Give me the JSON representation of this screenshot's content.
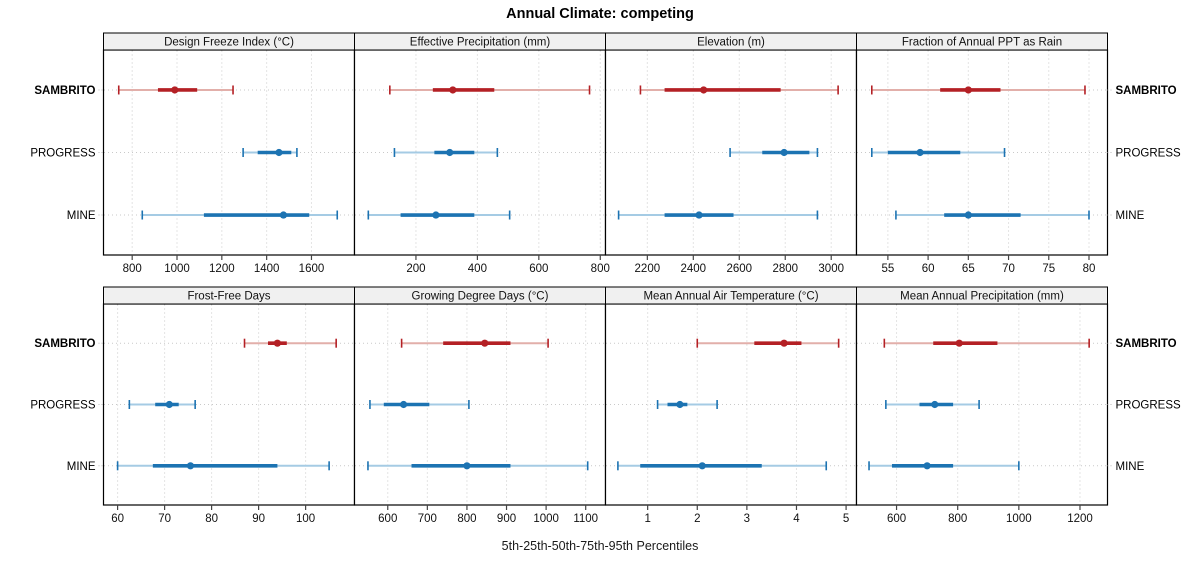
{
  "title": "Annual Climate: competing",
  "caption": "5th-25th-50th-75th-95th Percentiles",
  "colors": {
    "red_dark": "#B42025",
    "red_light": "#E2AFAA",
    "blue_dark": "#1C73B2",
    "blue_light": "#A5CBE4",
    "grid": "#c9c9c9",
    "strip_bg": "#f0f0f0",
    "panel_border": "#000000",
    "tick": "#444444",
    "text": "#111111"
  },
  "chart_data": {
    "type": "scatter",
    "subtype": "percentile-interval-dotplot",
    "layout": "4 columns x 2 rows, shared station rows",
    "grid": true,
    "percentile_labels": [
      "5th",
      "25th",
      "50th",
      "75th",
      "95th"
    ],
    "stations": [
      {
        "name": "SAMBRITO",
        "bold": true,
        "dark": "#B42025",
        "light": "#E2AFAA"
      },
      {
        "name": "PROGRESS",
        "bold": false,
        "dark": "#1C73B2",
        "light": "#A5CBE4"
      },
      {
        "name": "MINE",
        "bold": false,
        "dark": "#1C73B2",
        "light": "#A5CBE4"
      }
    ],
    "panels": [
      {
        "title": "Design Freeze Index (°C)",
        "ticks": [
          800,
          1000,
          1200,
          1400,
          1600
        ],
        "xlim": [
          672,
          1792
        ],
        "series": [
          {
            "name": "SAMBRITO",
            "values": [
              740,
              915,
              990,
              1090,
              1250
            ]
          },
          {
            "name": "PROGRESS",
            "values": [
              1295,
              1360,
              1455,
              1510,
              1535
            ]
          },
          {
            "name": "MINE",
            "values": [
              845,
              1120,
              1475,
              1590,
              1715
            ]
          }
        ]
      },
      {
        "title": "Effective Precipitation (mm)",
        "ticks": [
          200,
          400,
          600,
          800
        ],
        "xlim": [
          0,
          817
        ],
        "series": [
          {
            "name": "SAMBRITO",
            "values": [
              115,
              255,
              320,
              455,
              765
            ]
          },
          {
            "name": "PROGRESS",
            "values": [
              130,
              260,
              310,
              390,
              465
            ]
          },
          {
            "name": "MINE",
            "values": [
              45,
              150,
              265,
              390,
              505
            ]
          }
        ]
      },
      {
        "title": "Elevation (m)",
        "ticks": [
          2200,
          2400,
          2600,
          2800,
          3000
        ],
        "xlim": [
          2018,
          3110
        ],
        "series": [
          {
            "name": "SAMBRITO",
            "values": [
              2170,
              2275,
              2445,
              2780,
              3030
            ]
          },
          {
            "name": "PROGRESS",
            "values": [
              2560,
              2700,
              2795,
              2905,
              2940
            ]
          },
          {
            "name": "MINE",
            "values": [
              2075,
              2275,
              2425,
              2575,
              2940
            ]
          }
        ]
      },
      {
        "title": "Fraction of Annual PPT as Rain",
        "ticks": [
          55,
          60,
          65,
          70,
          75,
          80
        ],
        "xlim": [
          51.1,
          82.3
        ],
        "series": [
          {
            "name": "SAMBRITO",
            "values": [
              53,
              61.5,
              65,
              69,
              79.5
            ]
          },
          {
            "name": "PROGRESS",
            "values": [
              53,
              55,
              59,
              64,
              69.5
            ]
          },
          {
            "name": "MINE",
            "values": [
              56,
              62,
              65,
              71.5,
              80
            ]
          }
        ]
      },
      {
        "title": "Frost-Free Days",
        "ticks": [
          60,
          70,
          80,
          90,
          100
        ],
        "xlim": [
          57,
          110.4
        ],
        "series": [
          {
            "name": "SAMBRITO",
            "values": [
              87,
              92,
              94,
              96,
              106.5
            ]
          },
          {
            "name": "PROGRESS",
            "values": [
              62.5,
              68,
              71,
              73,
              76.5
            ]
          },
          {
            "name": "MINE",
            "values": [
              60,
              67.5,
              75.5,
              94,
              105
            ]
          }
        ]
      },
      {
        "title": "Growing Degree Days (°C)",
        "ticks": [
          600,
          700,
          800,
          900,
          1000,
          1100
        ],
        "xlim": [
          516,
          1150
        ],
        "series": [
          {
            "name": "SAMBRITO",
            "values": [
              635,
              740,
              845,
              910,
              1005
            ]
          },
          {
            "name": "PROGRESS",
            "values": [
              555,
              590,
              640,
              705,
              805
            ]
          },
          {
            "name": "MINE",
            "values": [
              550,
              660,
              800,
              910,
              1105
            ]
          }
        ]
      },
      {
        "title": "Mean Annual Air Temperature (°C)",
        "ticks": [
          1,
          2,
          3,
          4,
          5
        ],
        "xlim": [
          0.15,
          5.21
        ],
        "series": [
          {
            "name": "SAMBRITO",
            "values": [
              2.0,
              3.15,
              3.75,
              4.1,
              4.85
            ]
          },
          {
            "name": "PROGRESS",
            "values": [
              1.2,
              1.4,
              1.65,
              1.8,
              2.4
            ]
          },
          {
            "name": "MINE",
            "values": [
              0.4,
              0.85,
              2.1,
              3.3,
              4.6
            ]
          }
        ]
      },
      {
        "title": "Mean Annual Precipitation (mm)",
        "ticks": [
          600,
          800,
          1000,
          1200
        ],
        "xlim": [
          469,
          1290
        ],
        "series": [
          {
            "name": "SAMBRITO",
            "values": [
              560,
              720,
              805,
              930,
              1230
            ]
          },
          {
            "name": "PROGRESS",
            "values": [
              565,
              675,
              725,
              785,
              870
            ]
          },
          {
            "name": "MINE",
            "values": [
              510,
              585,
              700,
              785,
              1000
            ]
          }
        ]
      }
    ]
  }
}
